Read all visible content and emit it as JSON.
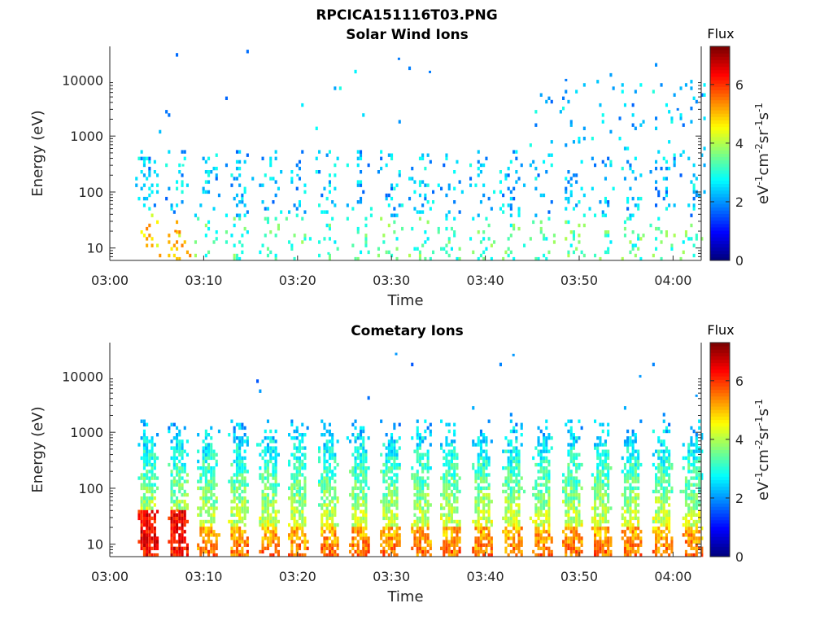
{
  "figure_title": "RPCICA151116T03.PNG",
  "chart_data": [
    {
      "type": "heatmap",
      "title": "Solar Wind Ions",
      "xlabel": "Time",
      "ylabel": "Energy (eV)",
      "x_range": [
        "03:00",
        "04:03"
      ],
      "x_ticks": [
        "03:00",
        "03:10",
        "03:20",
        "03:30",
        "03:40",
        "03:50",
        "04:00"
      ],
      "y_scale": "log",
      "y_range": [
        6,
        40000
      ],
      "y_ticks": [
        "10",
        "100",
        "1000",
        "10000"
      ],
      "colorbar": {
        "title": "Flux",
        "label": "eV-1cm-2sr-1s-1",
        "range": [
          0,
          7.3
        ],
        "ticks": [
          "0",
          "2",
          "4",
          "6"
        ]
      },
      "scan_times_min": [
        4.0,
        7.2,
        10.3,
        13.6,
        16.9,
        20.0,
        23.2,
        26.5,
        29.8,
        33.1,
        36.2,
        39.6,
        42.8,
        46.0,
        49.2,
        52.3,
        55.5,
        58.8,
        62.0
      ],
      "notes": "Sparse blue/cyan/green pixels at 10-500 eV in each scan; peak flux ~4.5-5.5 near 7 min below 30 eV; scattered isolated points up to ~20000 eV",
      "sample_points": [
        {
          "t": 7.0,
          "e": 20,
          "flux": 5.5
        },
        {
          "t": 7.8,
          "e": 300,
          "flux": 3.0
        },
        {
          "t": 20.0,
          "e": 200,
          "flux": 2.5
        },
        {
          "t": 23.3,
          "e": 8,
          "flux": 3.0
        },
        {
          "t": 30.8,
          "e": 24000,
          "flux": 1.8
        },
        {
          "t": 34.1,
          "e": 14000,
          "flux": 1.8
        },
        {
          "t": 48.6,
          "e": 10000,
          "flux": 1.8
        },
        {
          "t": 60.5,
          "e": 3000,
          "flux": 1.8
        }
      ]
    },
    {
      "type": "heatmap",
      "title": "Cometary Ions",
      "xlabel": "Time",
      "ylabel": "Energy (eV)",
      "x_range": [
        "03:00",
        "04:03"
      ],
      "x_ticks": [
        "03:00",
        "03:10",
        "03:20",
        "03:30",
        "03:40",
        "03:50",
        "04:00"
      ],
      "y_scale": "log",
      "y_range": [
        6,
        40000
      ],
      "y_ticks": [
        "10",
        "100",
        "1000",
        "10000"
      ],
      "colorbar": {
        "title": "Flux",
        "label": "eV-1cm-2sr-1s-1",
        "range": [
          0,
          7.3
        ],
        "ticks": [
          "0",
          "2",
          "4",
          "6"
        ]
      },
      "scan_times_min": [
        4.0,
        7.2,
        10.3,
        13.6,
        16.9,
        20.0,
        23.2,
        26.5,
        29.8,
        33.1,
        36.2,
        39.6,
        42.8,
        46.0,
        49.2,
        52.3,
        55.5,
        58.8,
        62.0
      ],
      "notes": "Dense scans from 10 eV to ~1000 eV in every scan; flux ~4-5 (yellow/orange) below 100 eV, peaking ~6.5 (red) near 7 min at 15-30 eV; blue edges near 500-1000 eV",
      "sample_points": [
        {
          "t": 7.0,
          "e": 20,
          "flux": 6.5
        },
        {
          "t": 7.2,
          "e": 40,
          "flux": 5.5
        },
        {
          "t": 20.0,
          "e": 100,
          "flux": 4.0
        },
        {
          "t": 30.5,
          "e": 25000,
          "flux": 2.0
        },
        {
          "t": 43.0,
          "e": 24000,
          "flux": 2.0
        },
        {
          "t": 56.5,
          "e": 10000,
          "flux": 2.0
        },
        {
          "t": 62.5,
          "e": 4500,
          "flux": 2.0
        }
      ]
    }
  ]
}
